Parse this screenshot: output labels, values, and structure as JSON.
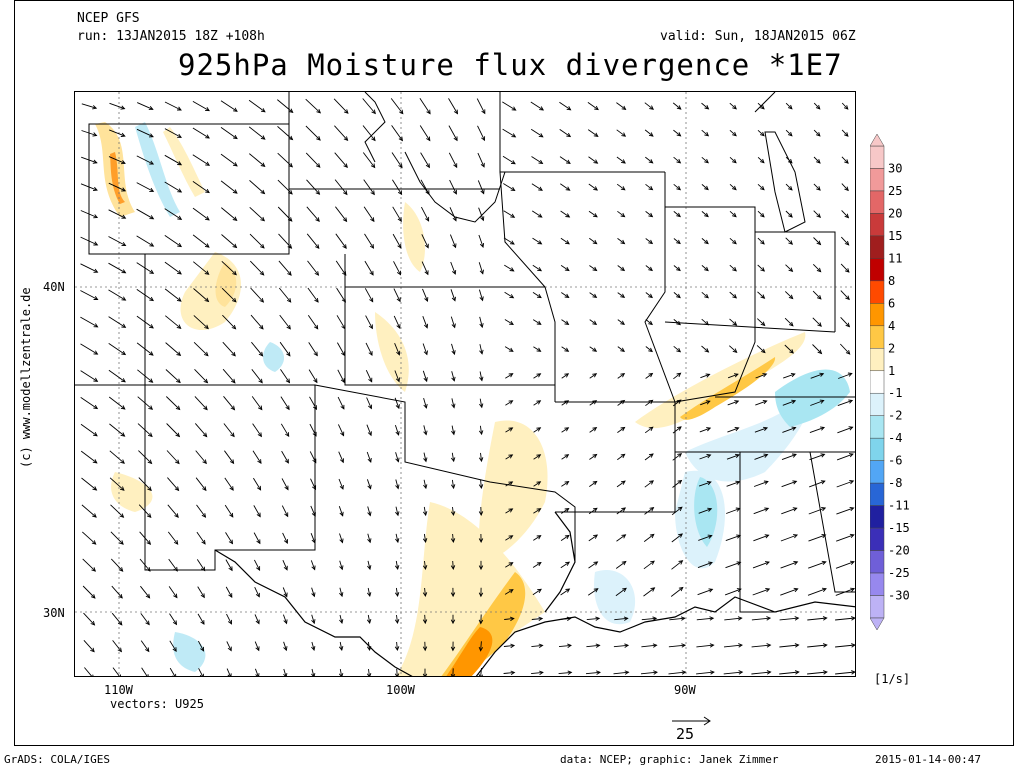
{
  "header": {
    "model": "NCEP GFS",
    "run": "run: 13JAN2015 18Z +108h",
    "valid": "valid: Sun, 18JAN2015 06Z",
    "title": "925hPa Moisture flux divergence *1E7"
  },
  "map": {
    "lat_labels": [
      "40N",
      "30N"
    ],
    "lon_labels": [
      "110W",
      "100W",
      "90W"
    ],
    "vectors_label": "vectors: U925",
    "reference_vector_value": "25",
    "watermark": "(c) www.modellzentrale.de",
    "features": [
      "US state boundaries",
      "Great Lakes",
      "Gulf of Mexico coast",
      "Mississippi River"
    ]
  },
  "colorbar": {
    "unit": "[1/s]",
    "levels": [
      "30",
      "25",
      "20",
      "15",
      "11",
      "8",
      "6",
      "4",
      "2",
      "1",
      "-1",
      "-2",
      "-4",
      "-6",
      "-8",
      "-11",
      "-15",
      "-20",
      "-25",
      "-30"
    ],
    "colors": [
      "#f7c8c8",
      "#f19a9a",
      "#e36767",
      "#c93a3a",
      "#a01e1e",
      "#c00000",
      "#ff4a00",
      "#ff9600",
      "#ffc845",
      "#fff0c0",
      "#ffffff",
      "#dcf2fb",
      "#a9e6f2",
      "#7fd4ec",
      "#52a6f5",
      "#2866d6",
      "#2020a0",
      "#3b2fb8",
      "#6f5fd8",
      "#9788ee",
      "#bdb2f5"
    ]
  },
  "footer": {
    "left": "GrADS: COLA/IGES",
    "center": "data: NCEP; graphic: Janek Zimmer",
    "right": "2015-01-14-00:47"
  }
}
